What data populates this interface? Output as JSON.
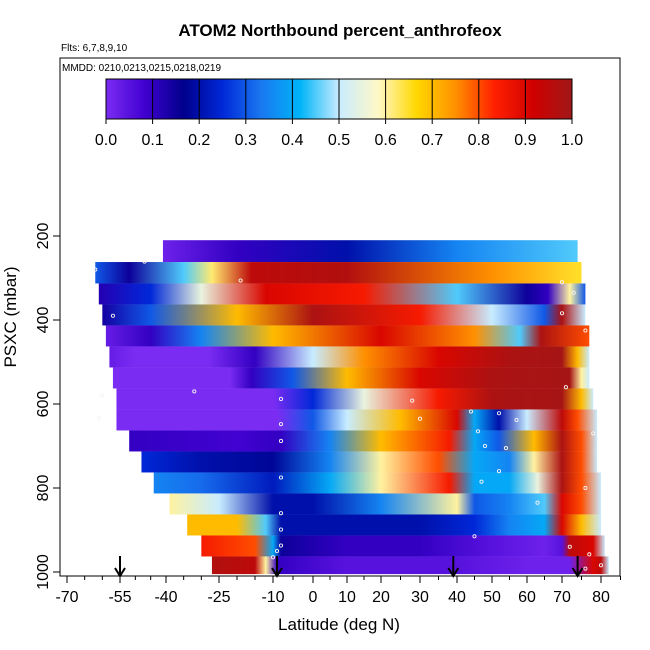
{
  "chart_data": {
    "type": "heatmap",
    "title": "ATOM2 Northbound percent_anthrofeox",
    "flights_note": "Flts: 6,7,8,9,10",
    "dates_note": "MMDD: 0210,0213,0215,0218,0219",
    "xlabel": "Latitude (deg N)",
    "ylabel": "PSXC (mbar)",
    "xlim": [
      -70,
      85
    ],
    "ylim": [
      1000,
      0
    ],
    "x_ticks": [
      -70,
      -55,
      -40,
      -25,
      -10,
      0,
      10,
      20,
      30,
      40,
      50,
      60,
      70,
      80
    ],
    "x_tick_labels": [
      "-70",
      "-55",
      "-40",
      "-25",
      "-10",
      "0",
      "10",
      "20",
      "30",
      "40",
      "50",
      "60",
      "70",
      "80"
    ],
    "y_ticks": [
      200,
      400,
      600,
      800,
      1000
    ],
    "y_tick_labels": [
      "200",
      "400",
      "600",
      "800",
      "1000"
    ],
    "colorbar": {
      "range": [
        0.0,
        1.0
      ],
      "tick_labels": [
        "0.0",
        "0.1",
        "0.2",
        "0.3",
        "0.4",
        "0.5",
        "0.6",
        "0.7",
        "0.8",
        "0.9",
        "1.0"
      ],
      "colors": [
        "#7b2cf2",
        "#4000d0",
        "#00008c",
        "#0028d8",
        "#1a78f0",
        "#00b4f8",
        "#c8ecff",
        "#fff8c8",
        "#ffd800",
        "#ff9000",
        "#ff2000",
        "#d00000",
        "#a01818"
      ]
    },
    "bands": [
      {
        "p": [
          210,
          262
        ],
        "lat": [
          -41,
          74
        ],
        "stops": [
          [
            -41,
            0.02
          ],
          [
            -20,
            0.1
          ],
          [
            10,
            0.2
          ],
          [
            40,
            0.35
          ],
          [
            74,
            0.45
          ]
        ]
      },
      {
        "p": [
          262,
          313
        ],
        "lat": [
          -62,
          75
        ],
        "stops": [
          [
            -62,
            0.3
          ],
          [
            -52,
            0.15
          ],
          [
            -35,
            0.45
          ],
          [
            -27,
            0.62
          ],
          [
            -16,
            0.95
          ],
          [
            10,
            0.97
          ],
          [
            50,
            0.75
          ],
          [
            74,
            0.65
          ]
        ]
      },
      {
        "p": [
          313,
          363
        ],
        "lat": [
          -61,
          76
        ],
        "stops": [
          [
            -61,
            0.12
          ],
          [
            -45,
            0.25
          ],
          [
            -30,
            0.55
          ],
          [
            -12,
            0.9
          ],
          [
            15,
            0.85
          ],
          [
            40,
            0.45
          ],
          [
            60,
            0.15
          ],
          [
            66,
            0.1
          ],
          [
            72,
            0.6
          ],
          [
            76,
            0.3
          ]
        ]
      },
      {
        "p": [
          363,
          413
        ],
        "lat": [
          -60,
          76
        ],
        "stops": [
          [
            -60,
            0.14
          ],
          [
            -45,
            0.3
          ],
          [
            -20,
            0.7
          ],
          [
            0,
            0.98
          ],
          [
            30,
            0.85
          ],
          [
            50,
            0.5
          ],
          [
            65,
            0.3
          ],
          [
            70,
            0.98
          ],
          [
            76,
            0.5
          ]
        ]
      },
      {
        "p": [
          413,
          463
        ],
        "lat": [
          -59,
          77
        ],
        "stops": [
          [
            -59,
            0.03
          ],
          [
            -45,
            0.1
          ],
          [
            -30,
            0.35
          ],
          [
            -10,
            0.7
          ],
          [
            20,
            0.9
          ],
          [
            45,
            0.75
          ],
          [
            58,
            0.45
          ],
          [
            64,
            0.98
          ],
          [
            77,
            0.8
          ]
        ]
      },
      {
        "p": [
          463,
          513
        ],
        "lat": [
          -58,
          77
        ],
        "stops": [
          [
            -58,
            0.03
          ],
          [
            -50,
            0.0
          ],
          [
            -28,
            0.0
          ],
          [
            -15,
            0.1
          ],
          [
            0,
            0.5
          ],
          [
            15,
            0.75
          ],
          [
            35,
            0.9
          ],
          [
            55,
            0.98
          ],
          [
            70,
            0.99
          ],
          [
            74,
            0.7
          ],
          [
            77,
            0.5
          ]
        ]
      },
      {
        "p": [
          513,
          563
        ],
        "lat": [
          -57,
          77
        ],
        "stops": [
          [
            -57,
            0.0
          ],
          [
            -22,
            0.0
          ],
          [
            -16,
            0.1
          ],
          [
            -5,
            0.3
          ],
          [
            10,
            0.7
          ],
          [
            30,
            0.9
          ],
          [
            50,
            0.98
          ],
          [
            72,
            0.99
          ],
          [
            75,
            0.6
          ],
          [
            77,
            0.5
          ]
        ]
      },
      {
        "p": [
          563,
          613
        ],
        "lat": [
          -56,
          78
        ],
        "stops": [
          [
            -56,
            0.0
          ],
          [
            -10,
            0.0
          ],
          [
            0,
            0.25
          ],
          [
            15,
            0.55
          ],
          [
            35,
            0.85
          ],
          [
            50,
            0.98
          ],
          [
            70,
            0.99
          ],
          [
            75,
            0.7
          ],
          [
            78,
            0.5
          ]
        ]
      },
      {
        "p": [
          613,
          663
        ],
        "lat": [
          -56,
          79
        ],
        "stops": [
          [
            -56,
            0.0
          ],
          [
            -9,
            0.0
          ],
          [
            0,
            0.3
          ],
          [
            10,
            0.5
          ],
          [
            25,
            0.7
          ],
          [
            40,
            0.9
          ],
          [
            45,
            0.4
          ],
          [
            52,
            0.2
          ],
          [
            60,
            0.5
          ],
          [
            70,
            0.95
          ],
          [
            74,
            0.8
          ],
          [
            79,
            0.5
          ]
        ]
      },
      {
        "p": [
          663,
          713
        ],
        "lat": [
          -52,
          79
        ],
        "stops": [
          [
            -52,
            0.1
          ],
          [
            -20,
            0.08
          ],
          [
            -8,
            0.1
          ],
          [
            5,
            0.35
          ],
          [
            20,
            0.7
          ],
          [
            38,
            0.85
          ],
          [
            45,
            0.4
          ],
          [
            52,
            0.3
          ],
          [
            62,
            0.7
          ],
          [
            70,
            0.98
          ],
          [
            75,
            0.8
          ],
          [
            79,
            0.5
          ]
        ]
      },
      {
        "p": [
          713,
          763
        ],
        "lat": [
          -48,
          79
        ],
        "stops": [
          [
            -48,
            0.25
          ],
          [
            -30,
            0.2
          ],
          [
            -10,
            0.18
          ],
          [
            5,
            0.35
          ],
          [
            20,
            0.6
          ],
          [
            35,
            0.8
          ],
          [
            45,
            0.4
          ],
          [
            55,
            0.35
          ],
          [
            62,
            0.6
          ],
          [
            70,
            0.98
          ],
          [
            75,
            0.8
          ],
          [
            79,
            0.5
          ]
        ]
      },
      {
        "p": [
          763,
          813
        ],
        "lat": [
          -44,
          80
        ],
        "stops": [
          [
            -44,
            0.35
          ],
          [
            -30,
            0.32
          ],
          [
            -10,
            0.22
          ],
          [
            5,
            0.4
          ],
          [
            20,
            0.6
          ],
          [
            38,
            0.85
          ],
          [
            45,
            0.4
          ],
          [
            55,
            0.4
          ],
          [
            63,
            0.55
          ],
          [
            70,
            0.98
          ],
          [
            75,
            0.8
          ],
          [
            80,
            0.5
          ]
        ]
      },
      {
        "p": [
          813,
          863
        ],
        "lat": [
          -39,
          80
        ],
        "stops": [
          [
            -39,
            0.6
          ],
          [
            -25,
            0.5
          ],
          [
            -10,
            0.2
          ],
          [
            0,
            0.2
          ],
          [
            20,
            0.35
          ],
          [
            40,
            0.6
          ],
          [
            45,
            0.3
          ],
          [
            55,
            0.35
          ],
          [
            65,
            0.45
          ],
          [
            70,
            0.9
          ],
          [
            75,
            0.8
          ],
          [
            80,
            0.5
          ]
        ]
      },
      {
        "p": [
          863,
          913
        ],
        "lat": [
          -34,
          80
        ],
        "stops": [
          [
            -34,
            0.7
          ],
          [
            -20,
            0.7
          ],
          [
            -12,
            0.45
          ],
          [
            -8,
            0.2
          ],
          [
            10,
            0.2
          ],
          [
            30,
            0.2
          ],
          [
            45,
            0.25
          ],
          [
            55,
            0.35
          ],
          [
            65,
            0.4
          ],
          [
            70,
            0.9
          ],
          [
            75,
            0.7
          ],
          [
            80,
            0.5
          ]
        ]
      },
      {
        "p": [
          913,
          963
        ],
        "lat": [
          -30,
          81
        ],
        "stops": [
          [
            -30,
            0.85
          ],
          [
            -15,
            0.8
          ],
          [
            -10,
            0.4
          ],
          [
            -8,
            0.15
          ],
          [
            10,
            0.1
          ],
          [
            30,
            0.1
          ],
          [
            50,
            0.05
          ],
          [
            65,
            0.02
          ],
          [
            70,
            0.05
          ],
          [
            72,
            0.95
          ],
          [
            78,
            0.9
          ],
          [
            81,
            0.5
          ]
        ]
      },
      {
        "p": [
          963,
          1005
        ],
        "lat": [
          -27,
          82
        ],
        "stops": [
          [
            -27,
            0.97
          ],
          [
            -15,
            0.95
          ],
          [
            -12,
            0.6
          ],
          [
            -9,
            0.1
          ],
          [
            10,
            0.05
          ],
          [
            40,
            0.05
          ],
          [
            60,
            0.02
          ],
          [
            72,
            0.02
          ],
          [
            78,
            0.9
          ],
          [
            80,
            0.95
          ],
          [
            82,
            0.5
          ]
        ]
      }
    ],
    "sample_points": [
      [
        -62,
        280
      ],
      [
        -47,
        261
      ],
      [
        -57,
        390
      ],
      [
        -19,
        306
      ],
      [
        -32,
        570
      ],
      [
        -60,
        580
      ],
      [
        -61,
        633
      ],
      [
        70,
        310
      ],
      [
        73,
        335
      ],
      [
        70,
        384
      ],
      [
        76,
        425
      ],
      [
        -8,
        588
      ],
      [
        -8,
        648
      ],
      [
        -8,
        688
      ],
      [
        52,
        622
      ],
      [
        57,
        638
      ],
      [
        44,
        618
      ],
      [
        28,
        592
      ],
      [
        30,
        635
      ],
      [
        46,
        665
      ],
      [
        48,
        700
      ],
      [
        54,
        705
      ],
      [
        52,
        760
      ],
      [
        47,
        785
      ],
      [
        -8,
        775
      ],
      [
        -8,
        860
      ],
      [
        -8,
        899
      ],
      [
        -8,
        937
      ],
      [
        -9,
        950
      ],
      [
        -10,
        965
      ],
      [
        45,
        915
      ],
      [
        72,
        940
      ],
      [
        77,
        958
      ],
      [
        80,
        984
      ],
      [
        76,
        992
      ],
      [
        63,
        835
      ],
      [
        71,
        560
      ],
      [
        78,
        670
      ],
      [
        76,
        800
      ],
      [
        -55,
        960
      ]
    ],
    "arrows_lat": [
      -55,
      -9,
      39,
      74
    ]
  }
}
